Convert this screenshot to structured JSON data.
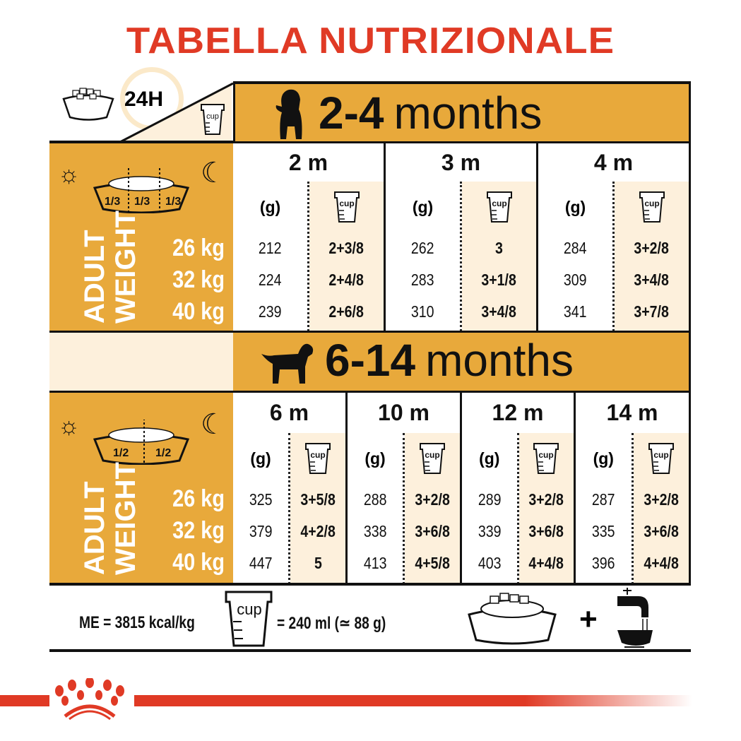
{
  "title": "TABELLA NUTRIZIONALE",
  "header": {
    "label_24h": "24H",
    "cup_label": "cup"
  },
  "colors": {
    "accent": "#e8a93b",
    "brand_red": "#e03a25",
    "cream": "#fdf0dc"
  },
  "adult_weight": {
    "line1": "ADULT",
    "line2": "WEIGHT",
    "weights": [
      "26 kg",
      "32 kg",
      "40 kg"
    ]
  },
  "section1": {
    "age_range": "2-4",
    "age_unit": "months",
    "fractions": [
      "1/3",
      "1/3",
      "1/3"
    ],
    "columns": [
      {
        "label": "2 m",
        "grams_label": "(g)",
        "grams": [
          "212",
          "224",
          "239"
        ],
        "cups": [
          "2+3/8",
          "2+4/8",
          "2+6/8"
        ]
      },
      {
        "label": "3 m",
        "grams_label": "(g)",
        "grams": [
          "262",
          "283",
          "310"
        ],
        "cups": [
          "3",
          "3+1/8",
          "3+4/8"
        ]
      },
      {
        "label": "4 m",
        "grams_label": "(g)",
        "grams": [
          "284",
          "309",
          "341"
        ],
        "cups": [
          "3+2/8",
          "3+4/8",
          "3+7/8"
        ]
      }
    ]
  },
  "section2": {
    "age_range": "6-14",
    "age_unit": "months",
    "fractions": [
      "1/2",
      "1/2"
    ],
    "columns": [
      {
        "label": "6 m",
        "grams_label": "(g)",
        "grams": [
          "325",
          "379",
          "447"
        ],
        "cups": [
          "3+5/8",
          "4+2/8",
          "5"
        ]
      },
      {
        "label": "10 m",
        "grams_label": "(g)",
        "grams": [
          "288",
          "338",
          "413"
        ],
        "cups": [
          "3+2/8",
          "3+6/8",
          "4+5/8"
        ]
      },
      {
        "label": "12 m",
        "grams_label": "(g)",
        "grams": [
          "289",
          "339",
          "403"
        ],
        "cups": [
          "3+2/8",
          "3+6/8",
          "4+4/8"
        ]
      },
      {
        "label": "14 m",
        "grams_label": "(g)",
        "grams": [
          "287",
          "335",
          "396"
        ],
        "cups": [
          "3+2/8",
          "3+6/8",
          "4+4/8"
        ]
      }
    ]
  },
  "footer": {
    "energy": "ME = 3815 kcal/kg",
    "cup_label": "cup",
    "cup_equiv": "= 240 ml (≃ 88 g)",
    "plus": "+"
  }
}
